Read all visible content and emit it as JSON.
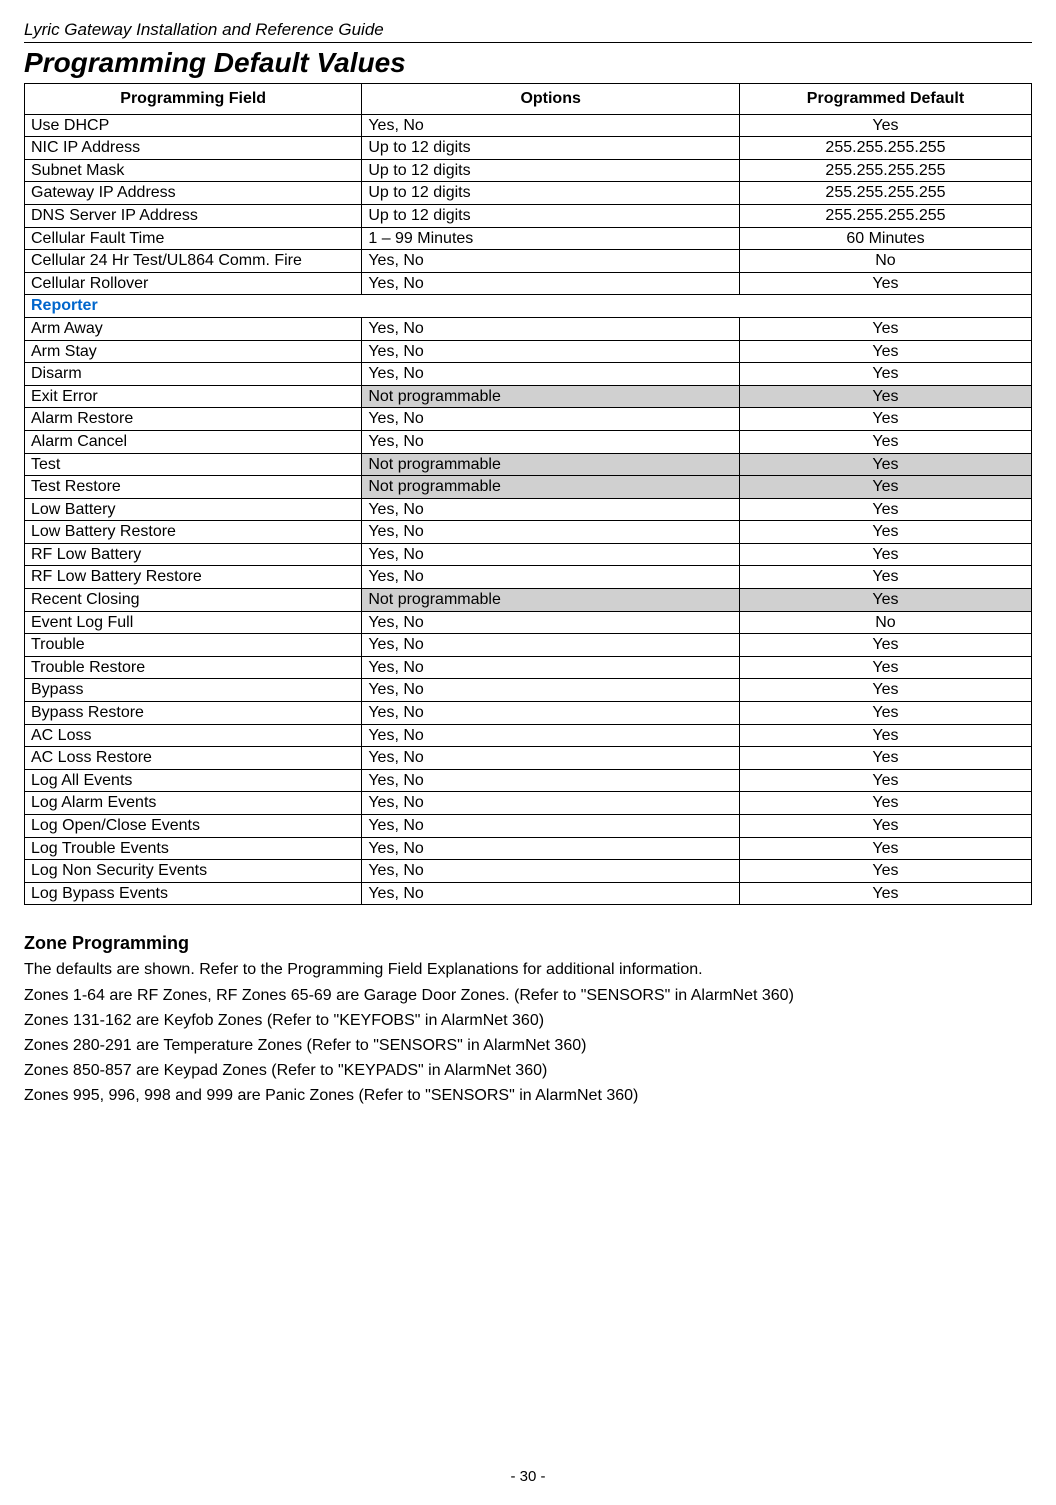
{
  "doc_header": "Lyric Gateway Installation and Reference Guide",
  "title": "Programming Default Values",
  "columns": {
    "field": "Programming Field",
    "options": "Options",
    "default": "Programmed Default"
  },
  "rows": [
    {
      "field": "Use DHCP",
      "options": "Yes, No",
      "default": "Yes",
      "grey": false
    },
    {
      "field": "NIC IP Address",
      "options": "Up to 12 digits",
      "default": "255.255.255.255",
      "grey": false
    },
    {
      "field": "Subnet Mask",
      "options": "Up to 12 digits",
      "default": "255.255.255.255",
      "grey": false
    },
    {
      "field": "Gateway IP Address",
      "options": "Up to 12 digits",
      "default": "255.255.255.255",
      "grey": false
    },
    {
      "field": "DNS Server IP Address",
      "options": "Up to 12 digits",
      "default": "255.255.255.255",
      "grey": false
    },
    {
      "field": "Cellular Fault Time",
      "options": "1 – 99 Minutes",
      "default": "60 Minutes",
      "grey": false
    },
    {
      "field": "Cellular 24 Hr Test/UL864 Comm. Fire",
      "options": "Yes, No",
      "default": "No",
      "grey": false
    },
    {
      "field": "Cellular Rollover",
      "options": "Yes, No",
      "default": "Yes",
      "grey": false
    },
    {
      "section": "Reporter"
    },
    {
      "field": "Arm Away",
      "options": "Yes, No",
      "default": "Yes",
      "grey": false
    },
    {
      "field": "Arm Stay",
      "options": "Yes, No",
      "default": "Yes",
      "grey": false
    },
    {
      "field": "Disarm",
      "options": "Yes, No",
      "default": "Yes",
      "grey": false
    },
    {
      "field": "Exit Error",
      "options": "Not programmable",
      "default": "Yes",
      "grey": true
    },
    {
      "field": "Alarm Restore",
      "options": "Yes, No",
      "default": "Yes",
      "grey": false
    },
    {
      "field": "Alarm Cancel",
      "options": "Yes, No",
      "default": "Yes",
      "grey": false
    },
    {
      "field": "Test",
      "options": "Not programmable",
      "default": "Yes",
      "grey": true
    },
    {
      "field": "Test Restore",
      "options": "Not programmable",
      "default": "Yes",
      "grey": true
    },
    {
      "field": "Low Battery",
      "options": "Yes, No",
      "default": "Yes",
      "grey": false
    },
    {
      "field": "Low Battery Restore",
      "options": "Yes, No",
      "default": "Yes",
      "grey": false
    },
    {
      "field": "RF Low Battery",
      "options": "Yes, No",
      "default": "Yes",
      "grey": false
    },
    {
      "field": "RF Low Battery Restore",
      "options": "Yes, No",
      "default": "Yes",
      "grey": false
    },
    {
      "field": "Recent Closing",
      "options": "Not programmable",
      "default": "Yes",
      "grey": true
    },
    {
      "field": "Event Log Full",
      "options": "Yes, No",
      "default": "No",
      "grey": false
    },
    {
      "field": "Trouble",
      "options": "Yes, No",
      "default": "Yes",
      "grey": false
    },
    {
      "field": "Trouble Restore",
      "options": "Yes, No",
      "default": "Yes",
      "grey": false
    },
    {
      "field": "Bypass",
      "options": "Yes, No",
      "default": "Yes",
      "grey": false
    },
    {
      "field": "Bypass Restore",
      "options": "Yes, No",
      "default": "Yes",
      "grey": false
    },
    {
      "field": "AC Loss",
      "options": "Yes, No",
      "default": "Yes",
      "grey": false
    },
    {
      "field": "AC Loss Restore",
      "options": "Yes, No",
      "default": "Yes",
      "grey": false
    },
    {
      "field": "Log All Events",
      "options": "Yes, No",
      "default": "Yes",
      "grey": false
    },
    {
      "field": "Log Alarm Events",
      "options": "Yes, No",
      "default": "Yes",
      "grey": false
    },
    {
      "field": "Log Open/Close Events",
      "options": "Yes, No",
      "default": "Yes",
      "grey": false
    },
    {
      "field": "Log Trouble Events",
      "options": "Yes, No",
      "default": "Yes",
      "grey": false
    },
    {
      "field": "Log Non Security Events",
      "options": "Yes, No",
      "default": "Yes",
      "grey": false
    },
    {
      "field": "Log Bypass Events",
      "options": "Yes, No",
      "default": "Yes",
      "grey": false
    }
  ],
  "zone": {
    "heading": "Zone Programming",
    "lines": [
      "The defaults are shown.  Refer to the Programming Field Explanations for additional information.",
      "Zones 1-64 are RF Zones, RF Zones 65-69 are Garage Door Zones. (Refer to \"SENSORS\" in AlarmNet 360)",
      "Zones 131-162 are Keyfob Zones (Refer to \"KEYFOBS\" in AlarmNet 360)",
      "Zones 280-291 are Temperature Zones (Refer to \"SENSORS\" in AlarmNet 360)",
      "Zones 850-857 are Keypad Zones (Refer to \"KEYPADS\" in AlarmNet 360)",
      "Zones 995, 996, 998 and 999 are Panic Zones (Refer to \"SENSORS\" in AlarmNet 360)"
    ]
  },
  "page_number": "- 30 -",
  "colors": {
    "section_text": "#0066cc",
    "grey_bg": "#d0d0d0",
    "border": "#000000"
  }
}
